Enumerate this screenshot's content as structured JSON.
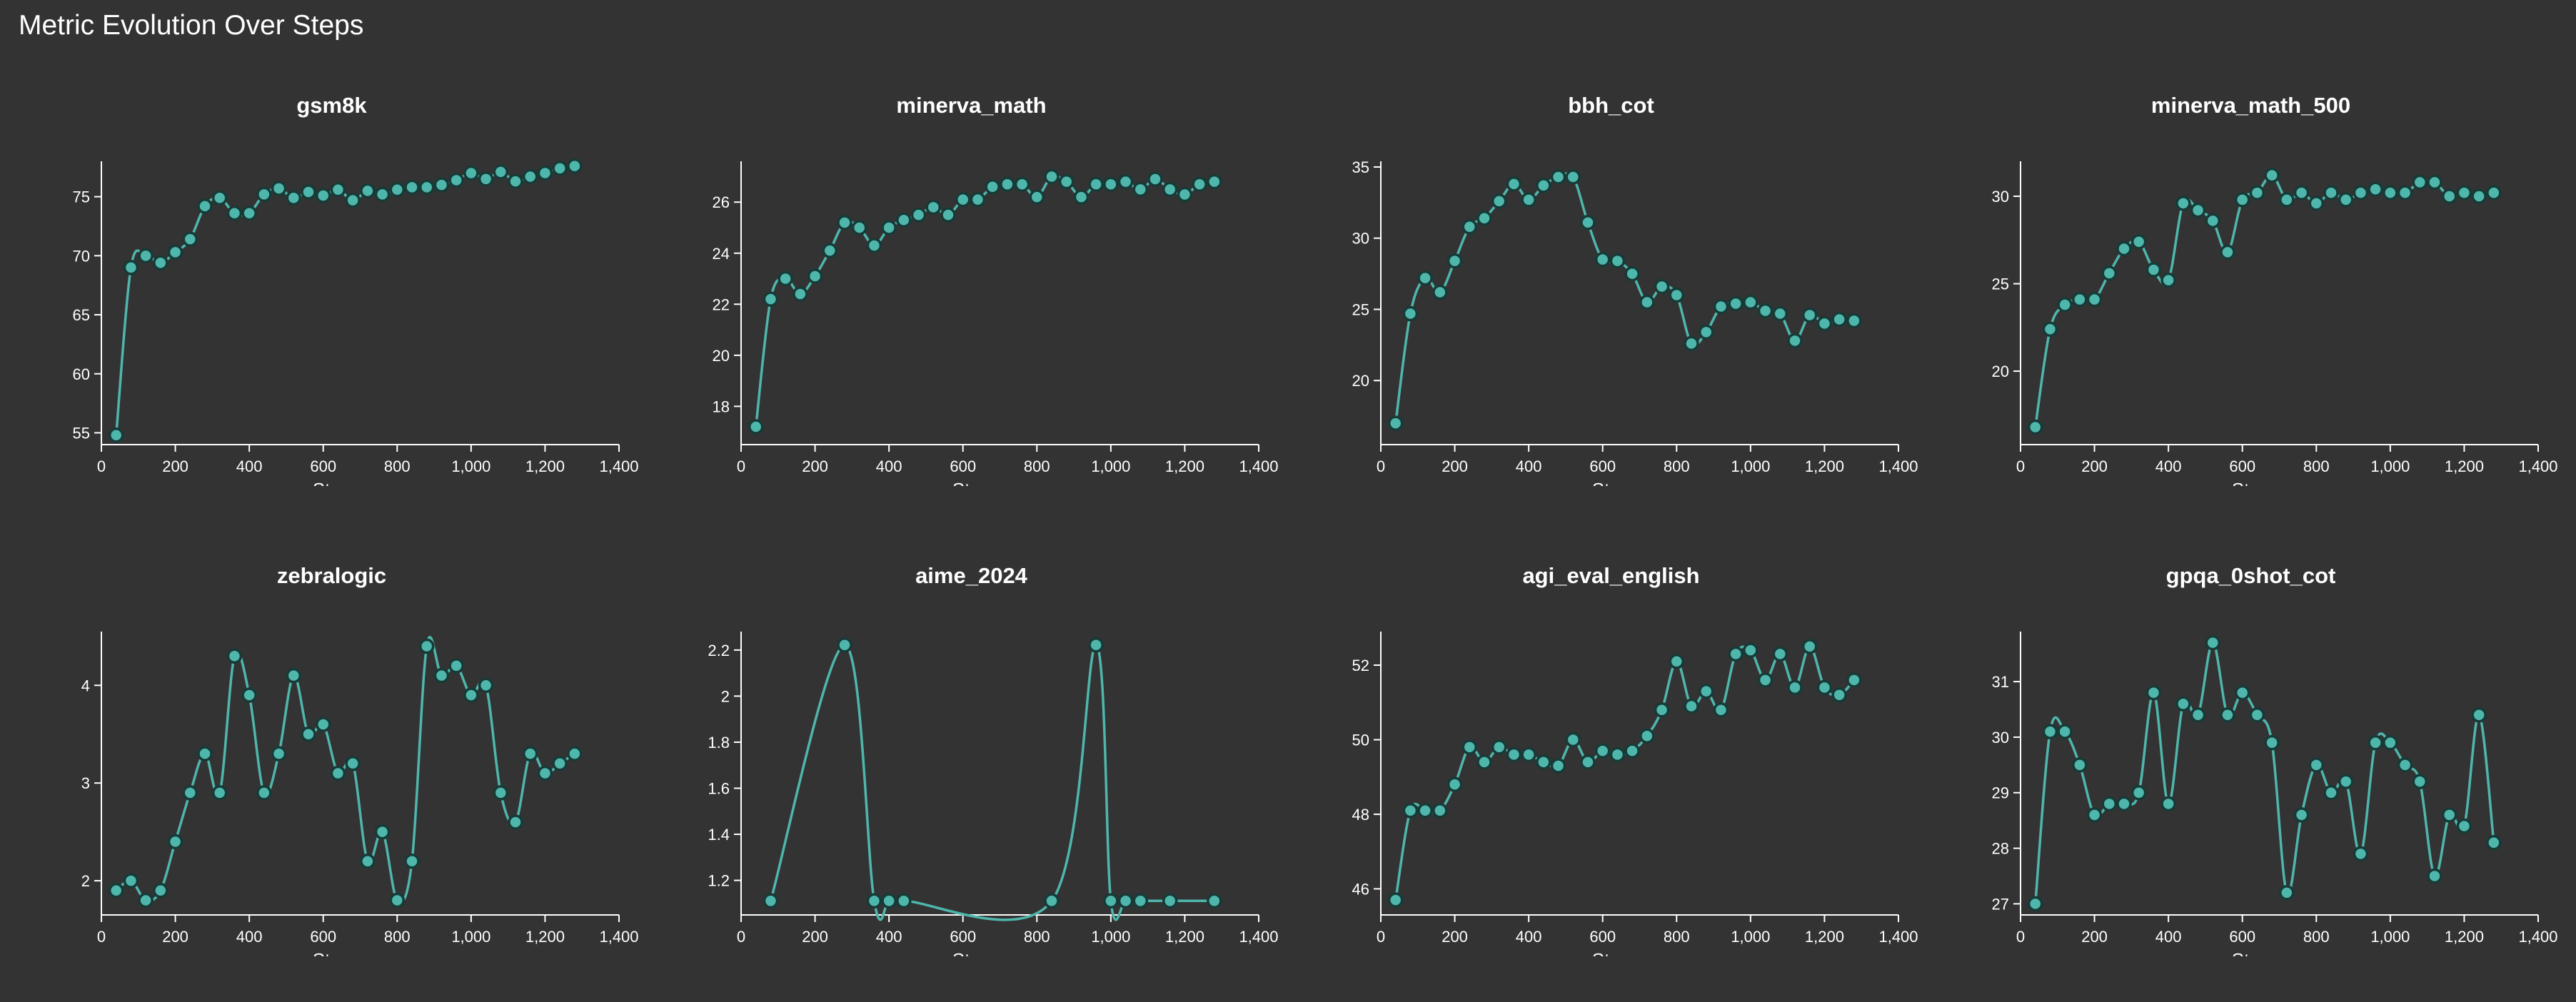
{
  "page": {
    "title": "Metric Evolution Over Steps"
  },
  "style": {
    "background": "#333333",
    "line_color": "#4fb6ac",
    "marker_fill": "#4fb6ac",
    "marker_stroke": "#173a37",
    "axis_color": "#ffffff"
  },
  "chart_data": [
    {
      "type": "line",
      "title": "gsm8k",
      "xlabel": "Step",
      "ylabel": "",
      "xlim": [
        0,
        1400
      ],
      "ylim": [
        54,
        78
      ],
      "xticks": [
        0,
        200,
        400,
        600,
        800,
        1000,
        1200,
        1400
      ],
      "yticks": [
        55,
        60,
        65,
        70,
        75
      ],
      "x": [
        40,
        80,
        120,
        160,
        200,
        240,
        280,
        320,
        360,
        400,
        440,
        480,
        520,
        560,
        600,
        640,
        680,
        720,
        760,
        800,
        840,
        880,
        920,
        960,
        1000,
        1040,
        1080,
        1120,
        1160,
        1200,
        1240,
        1280
      ],
      "y": [
        54.8,
        69.0,
        70.0,
        69.4,
        70.3,
        71.4,
        74.2,
        74.9,
        73.6,
        73.6,
        75.2,
        75.7,
        74.9,
        75.4,
        75.1,
        75.6,
        74.7,
        75.5,
        75.2,
        75.6,
        75.8,
        75.8,
        76.0,
        76.4,
        77.0,
        76.5,
        77.1,
        76.3,
        76.7,
        77.0,
        77.4,
        77.6
      ]
    },
    {
      "type": "line",
      "title": "minerva_math",
      "xlabel": "Step",
      "ylabel": "",
      "xlim": [
        0,
        1400
      ],
      "ylim": [
        16.5,
        27.6
      ],
      "xticks": [
        0,
        200,
        400,
        600,
        800,
        1000,
        1200,
        1400
      ],
      "yticks": [
        18,
        20,
        22,
        24,
        26
      ],
      "x": [
        40,
        80,
        120,
        160,
        200,
        240,
        280,
        320,
        360,
        400,
        440,
        480,
        520,
        560,
        600,
        640,
        680,
        720,
        760,
        800,
        840,
        880,
        920,
        960,
        1000,
        1040,
        1080,
        1120,
        1160,
        1200,
        1240,
        1280
      ],
      "y": [
        17.2,
        22.2,
        23.0,
        22.4,
        23.1,
        24.1,
        25.2,
        25.0,
        24.3,
        25.0,
        25.3,
        25.5,
        25.8,
        25.5,
        26.1,
        26.1,
        26.6,
        26.7,
        26.7,
        26.2,
        27.0,
        26.8,
        26.2,
        26.7,
        26.7,
        26.8,
        26.5,
        26.9,
        26.5,
        26.3,
        26.7,
        26.8
      ]
    },
    {
      "type": "line",
      "title": "bbh_cot",
      "xlabel": "Step",
      "ylabel": "",
      "xlim": [
        0,
        1400
      ],
      "ylim": [
        15.5,
        35.4
      ],
      "xticks": [
        0,
        200,
        400,
        600,
        800,
        1000,
        1200,
        1400
      ],
      "yticks": [
        20,
        25,
        30,
        35
      ],
      "x": [
        40,
        80,
        120,
        160,
        200,
        240,
        280,
        320,
        360,
        400,
        440,
        480,
        520,
        560,
        600,
        640,
        680,
        720,
        760,
        800,
        840,
        880,
        920,
        960,
        1000,
        1040,
        1080,
        1120,
        1160,
        1200,
        1240,
        1280
      ],
      "y": [
        17.0,
        24.7,
        27.2,
        26.2,
        28.4,
        30.8,
        31.4,
        32.6,
        33.8,
        32.7,
        33.7,
        34.3,
        34.3,
        31.1,
        28.5,
        28.4,
        27.5,
        25.5,
        26.6,
        26.0,
        22.6,
        23.4,
        25.2,
        25.4,
        25.5,
        24.9,
        24.7,
        22.8,
        24.6,
        24.0,
        24.3,
        24.2
      ]
    },
    {
      "type": "line",
      "title": "minerva_math_500",
      "xlabel": "Step",
      "ylabel": "",
      "xlim": [
        0,
        1400
      ],
      "ylim": [
        15.8,
        32.0
      ],
      "xticks": [
        0,
        200,
        400,
        600,
        800,
        1000,
        1200,
        1400
      ],
      "yticks": [
        20,
        25,
        30
      ],
      "x": [
        40,
        80,
        120,
        160,
        200,
        240,
        280,
        320,
        360,
        400,
        440,
        480,
        520,
        560,
        600,
        640,
        680,
        720,
        760,
        800,
        840,
        880,
        920,
        960,
        1000,
        1040,
        1080,
        1120,
        1160,
        1200,
        1240,
        1280
      ],
      "y": [
        16.8,
        22.4,
        23.8,
        24.1,
        24.1,
        25.6,
        27.0,
        27.4,
        25.8,
        25.2,
        29.6,
        29.2,
        28.6,
        26.8,
        29.8,
        30.2,
        31.2,
        29.8,
        30.2,
        29.6,
        30.2,
        29.8,
        30.2,
        30.4,
        30.2,
        30.2,
        30.8,
        30.8,
        30.0,
        30.2,
        30.0,
        30.2
      ]
    },
    {
      "type": "line",
      "title": "zebralogic",
      "xlabel": "Step",
      "ylabel": "",
      "xlim": [
        0,
        1400
      ],
      "ylim": [
        1.65,
        4.55
      ],
      "xticks": [
        0,
        200,
        400,
        600,
        800,
        1000,
        1200,
        1400
      ],
      "yticks": [
        2,
        3,
        4
      ],
      "x": [
        40,
        80,
        120,
        160,
        200,
        240,
        280,
        320,
        360,
        400,
        440,
        480,
        520,
        560,
        600,
        640,
        680,
        720,
        760,
        800,
        840,
        880,
        920,
        960,
        1000,
        1040,
        1080,
        1120,
        1160,
        1200,
        1240,
        1280
      ],
      "y": [
        1.9,
        2.0,
        1.8,
        1.9,
        2.4,
        2.9,
        3.3,
        2.9,
        4.3,
        3.9,
        2.9,
        3.3,
        4.1,
        3.5,
        3.6,
        3.1,
        3.2,
        2.2,
        2.5,
        1.8,
        2.2,
        4.4,
        4.1,
        4.2,
        3.9,
        4.0,
        2.9,
        2.6,
        3.3,
        3.1,
        3.2,
        3.3
      ]
    },
    {
      "type": "line",
      "title": "aime_2024",
      "xlabel": "Step",
      "ylabel": "",
      "xlim": [
        0,
        1400
      ],
      "ylim": [
        1.05,
        2.28
      ],
      "xticks": [
        0,
        200,
        400,
        600,
        800,
        1000,
        1200,
        1400
      ],
      "yticks": [
        1.2,
        1.4,
        1.6,
        1.8,
        2.0,
        2.2
      ],
      "x": [
        80,
        280,
        360,
        400,
        440,
        840,
        960,
        1000,
        1040,
        1080,
        1160,
        1280
      ],
      "y": [
        1.111,
        2.222,
        1.111,
        1.111,
        1.111,
        1.111,
        2.222,
        1.111,
        1.111,
        1.111,
        1.111,
        1.111
      ]
    },
    {
      "type": "line",
      "title": "agi_eval_english",
      "xlabel": "Step",
      "ylabel": "",
      "xlim": [
        0,
        1400
      ],
      "ylim": [
        45.3,
        52.9
      ],
      "xticks": [
        0,
        200,
        400,
        600,
        800,
        1000,
        1200,
        1400
      ],
      "yticks": [
        46,
        48,
        50,
        52
      ],
      "x": [
        40,
        80,
        120,
        160,
        200,
        240,
        280,
        320,
        360,
        400,
        440,
        480,
        520,
        560,
        600,
        640,
        680,
        720,
        760,
        800,
        840,
        880,
        920,
        960,
        1000,
        1040,
        1080,
        1120,
        1160,
        1200,
        1240,
        1280
      ],
      "y": [
        45.7,
        48.1,
        48.1,
        48.1,
        48.8,
        49.8,
        49.4,
        49.8,
        49.6,
        49.6,
        49.4,
        49.3,
        50.0,
        49.4,
        49.7,
        49.6,
        49.7,
        50.1,
        50.8,
        52.1,
        50.9,
        51.3,
        50.8,
        52.3,
        52.4,
        51.6,
        52.3,
        51.4,
        52.5,
        51.4,
        51.2,
        51.6
      ]
    },
    {
      "type": "line",
      "title": "gpqa_0shot_cot",
      "xlabel": "Step",
      "ylabel": "",
      "xlim": [
        0,
        1400
      ],
      "ylim": [
        26.8,
        31.9
      ],
      "xticks": [
        0,
        200,
        400,
        600,
        800,
        1000,
        1200,
        1400
      ],
      "yticks": [
        27,
        28,
        29,
        30,
        31
      ],
      "x": [
        40,
        80,
        120,
        160,
        200,
        240,
        280,
        320,
        360,
        400,
        440,
        480,
        520,
        560,
        600,
        640,
        680,
        720,
        760,
        800,
        840,
        880,
        920,
        960,
        1000,
        1040,
        1080,
        1120,
        1160,
        1200,
        1240,
        1280
      ],
      "y": [
        27.0,
        30.1,
        30.1,
        29.5,
        28.6,
        28.8,
        28.8,
        29.0,
        30.8,
        28.8,
        30.6,
        30.4,
        31.7,
        30.4,
        30.8,
        30.4,
        29.9,
        27.2,
        28.6,
        29.5,
        29.0,
        29.2,
        27.9,
        29.9,
        29.9,
        29.5,
        29.2,
        27.5,
        28.6,
        28.4,
        30.4,
        28.1
      ]
    }
  ]
}
